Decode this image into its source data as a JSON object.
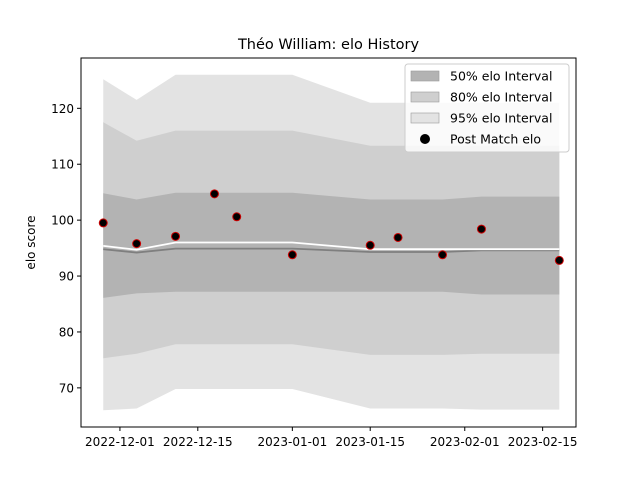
{
  "chart_data": {
    "type": "line",
    "title": "Théo William: elo History",
    "xlabel": "",
    "ylabel": "elo score",
    "xlim": [
      "2022-11-24",
      "2023-02-21"
    ],
    "ylim": [
      63,
      129
    ],
    "x_ticks": [
      "2022-12-01",
      "2022-12-15",
      "2023-01-01",
      "2023-01-15",
      "2023-02-01",
      "2023-02-15"
    ],
    "y_ticks": [
      70,
      80,
      90,
      100,
      110,
      120
    ],
    "grid": false,
    "legend_position": "top-right",
    "x": [
      "2022-11-28",
      "2022-12-04",
      "2022-12-11",
      "2022-12-18",
      "2022-12-22",
      "2023-01-01",
      "2023-01-15",
      "2023-01-20",
      "2023-01-28",
      "2023-02-04",
      "2023-02-18"
    ],
    "series": [
      {
        "name": "95% elo Interval",
        "kind": "band",
        "color": "#e3e3e3",
        "lower": [
          66.0,
          66.3,
          69.8,
          69.8,
          69.8,
          69.8,
          66.3,
          66.3,
          66.3,
          66.1,
          66.1
        ],
        "upper": [
          125.2,
          121.5,
          126.0,
          126.0,
          126.0,
          126.0,
          121.0,
          121.0,
          121.0,
          121.0,
          121.0
        ]
      },
      {
        "name": "80% elo Interval",
        "kind": "band",
        "color": "#cfcfcf",
        "lower": [
          75.3,
          76.1,
          77.8,
          77.8,
          77.8,
          77.8,
          75.9,
          75.9,
          75.9,
          76.1,
          76.1
        ],
        "upper": [
          117.5,
          114.2,
          116.0,
          116.0,
          116.0,
          116.0,
          113.3,
          113.3,
          113.3,
          113.3,
          113.3
        ]
      },
      {
        "name": "50% elo Interval",
        "kind": "band",
        "color": "#b3b3b3",
        "lower": [
          86.1,
          86.9,
          87.2,
          87.2,
          87.2,
          87.2,
          87.2,
          87.2,
          87.2,
          86.7,
          86.7
        ],
        "upper": [
          104.8,
          103.7,
          104.9,
          104.9,
          104.9,
          104.9,
          103.7,
          103.7,
          103.7,
          104.2,
          104.2
        ]
      },
      {
        "name": "",
        "kind": "line",
        "color": "#7f7f7f",
        "values": [
          94.8,
          94.2,
          94.9,
          94.9,
          94.9,
          94.9,
          94.3,
          94.3,
          94.3,
          94.6,
          94.6
        ]
      },
      {
        "name": "",
        "kind": "line",
        "color": "#ffffff",
        "values": [
          95.4,
          94.7,
          96.0,
          96.0,
          96.0,
          96.0,
          94.8,
          94.8,
          94.8,
          94.8,
          94.8
        ]
      },
      {
        "name": "Post Match elo",
        "kind": "scatter",
        "color": "#000000",
        "edge_color": "#cc0000",
        "values": [
          99.5,
          95.8,
          97.1,
          104.7,
          100.6,
          93.8,
          95.5,
          96.9,
          93.8,
          98.4,
          92.8
        ]
      }
    ]
  }
}
